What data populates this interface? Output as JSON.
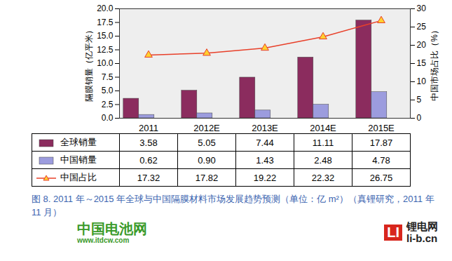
{
  "chart_data": {
    "type": "bar",
    "caption": "图 8. 2011 年～2015 年全球与中国隔膜材料市场发展趋势预测（单位：亿 m²）（真锂研究，2011 年 11 月）",
    "y_label": "隔膜销量（亿平米）",
    "y2_label": "中国市场占比（%）",
    "categories": [
      "2011",
      "2012E",
      "2013E",
      "2014E",
      "2015E"
    ],
    "ylim": [
      0,
      20
    ],
    "yticks": [
      {
        "value": 0,
        "label": "0.0"
      },
      {
        "value": 2.5,
        "label": "2.5"
      },
      {
        "value": 5,
        "label": "5.0"
      },
      {
        "value": 7.5,
        "label": "7.5"
      },
      {
        "value": 10,
        "label": "10.0"
      },
      {
        "value": 12.5,
        "label": "12.5"
      },
      {
        "value": 15,
        "label": "15.0"
      },
      {
        "value": 17.5,
        "label": "17.5"
      },
      {
        "value": 20,
        "label": "20.0"
      }
    ],
    "y2lim": [
      0,
      30
    ],
    "y2ticks": [
      0,
      5,
      10,
      15,
      20,
      25,
      30
    ],
    "series": [
      {
        "name": "全球销量",
        "color": "#8b2c5e",
        "values": [
          3.58,
          5.05,
          7.44,
          11.11,
          17.87
        ]
      },
      {
        "name": "中国销量",
        "color": "#9c9cde",
        "values": [
          0.62,
          0.9,
          1.43,
          2.48,
          4.78
        ],
        "value_labels": [
          "0.62",
          "0.90",
          "1.43",
          "2.48",
          "4.78"
        ]
      },
      {
        "name": "中国占比",
        "type": "line",
        "axis": "y2",
        "color": "#e8402a",
        "marker": "triangle",
        "values": [
          17.32,
          17.82,
          19.22,
          22.32,
          26.75
        ]
      }
    ],
    "watermark": [
      "中国电池网",
      "www.itdcw.com",
      "LI",
      "锂电网",
      "li-b.cn"
    ]
  }
}
